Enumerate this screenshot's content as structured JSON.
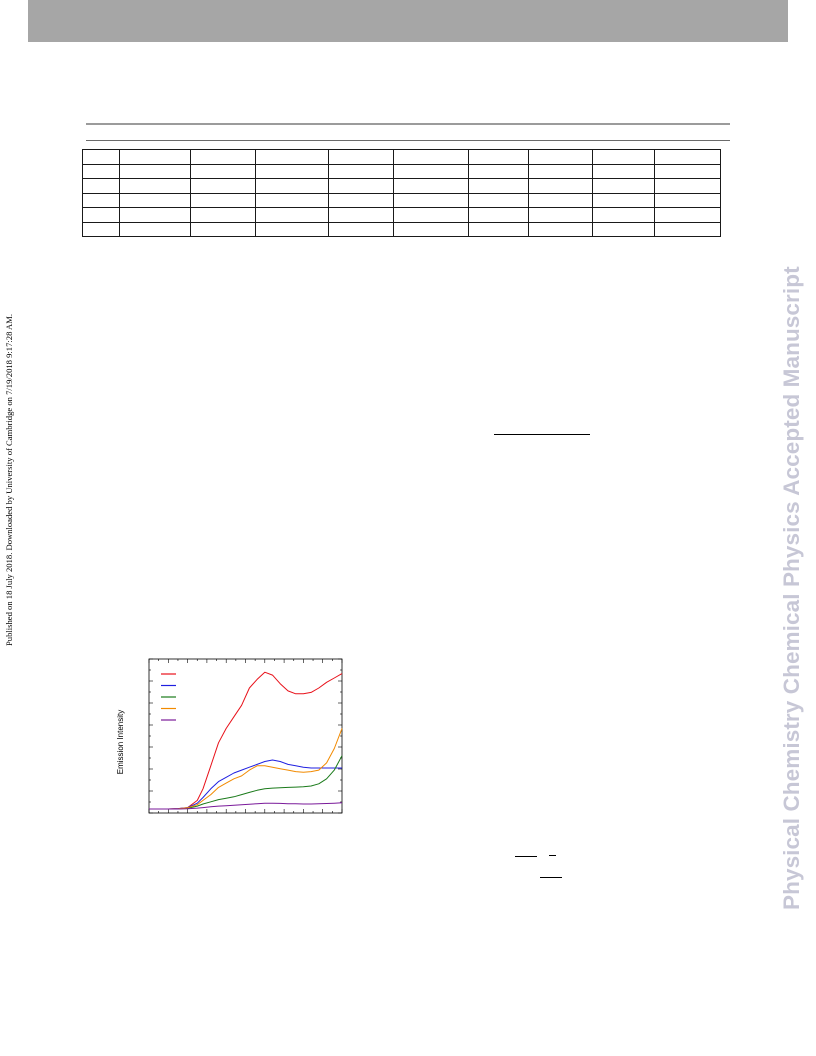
{
  "sidebar": {
    "published_note": "Published on 18 July 2018. Downloaded by University of Cambridge on 7/19/2018 9:17:28 AM."
  },
  "watermark": {
    "text": "Physical Chemistry Chemical Physics Accepted Manuscript",
    "color": "#c7c7d6"
  },
  "table": {
    "rows": 6,
    "column_widths": [
      37,
      71,
      65,
      73,
      65,
      75,
      60,
      64,
      62,
      66
    ]
  },
  "chart_data": {
    "type": "line",
    "ylabel": "Emission Intensity",
    "xlabel": "",
    "title": "",
    "xlim": [
      0,
      100
    ],
    "ylim": [
      0,
      100
    ],
    "grid": false,
    "legend_placement": "top-left",
    "x": [
      0,
      5,
      10,
      15,
      20,
      25,
      28,
      32,
      36,
      40,
      44,
      48,
      52,
      56,
      60,
      64,
      68,
      72,
      76,
      80,
      84,
      88,
      92,
      96,
      100
    ],
    "series": [
      {
        "color": "#e8111a",
        "values": [
          0,
          0,
          0,
          0.3,
          1,
          6,
          14,
          30,
          46,
          56,
          64,
          72,
          84,
          90,
          95,
          93,
          87,
          82,
          80,
          80,
          81,
          84,
          88,
          91,
          94
        ]
      },
      {
        "color": "#1f1fe0",
        "values": [
          0,
          0,
          0,
          0.3,
          1,
          4,
          8,
          14,
          19,
          22,
          25,
          27,
          29,
          31,
          33,
          34,
          33,
          31,
          30,
          29,
          28.5,
          28.5,
          28.5,
          28.5,
          28.5
        ]
      },
      {
        "color": "#1a7a1a",
        "values": [
          0,
          0,
          0,
          0.1,
          0.5,
          2,
          3.5,
          5,
          6.5,
          7.5,
          8.5,
          10,
          11.5,
          13,
          14,
          14.5,
          14.8,
          15,
          15.2,
          15.4,
          16,
          17.5,
          21,
          27,
          37
        ]
      },
      {
        "color": "#f28a00",
        "values": [
          0,
          0,
          0,
          0.2,
          0.8,
          3,
          6,
          10,
          15,
          18,
          21,
          23,
          27,
          30,
          30,
          29,
          28,
          27,
          26,
          25.5,
          26,
          27,
          32,
          42,
          56
        ]
      },
      {
        "color": "#7a1a9a",
        "values": [
          0,
          0,
          0,
          0,
          0.2,
          0.6,
          1,
          1.5,
          2,
          2.3,
          2.6,
          2.9,
          3.3,
          3.7,
          4,
          4,
          3.9,
          3.7,
          3.6,
          3.5,
          3.5,
          3.6,
          3.8,
          4,
          4.3
        ]
      }
    ]
  }
}
